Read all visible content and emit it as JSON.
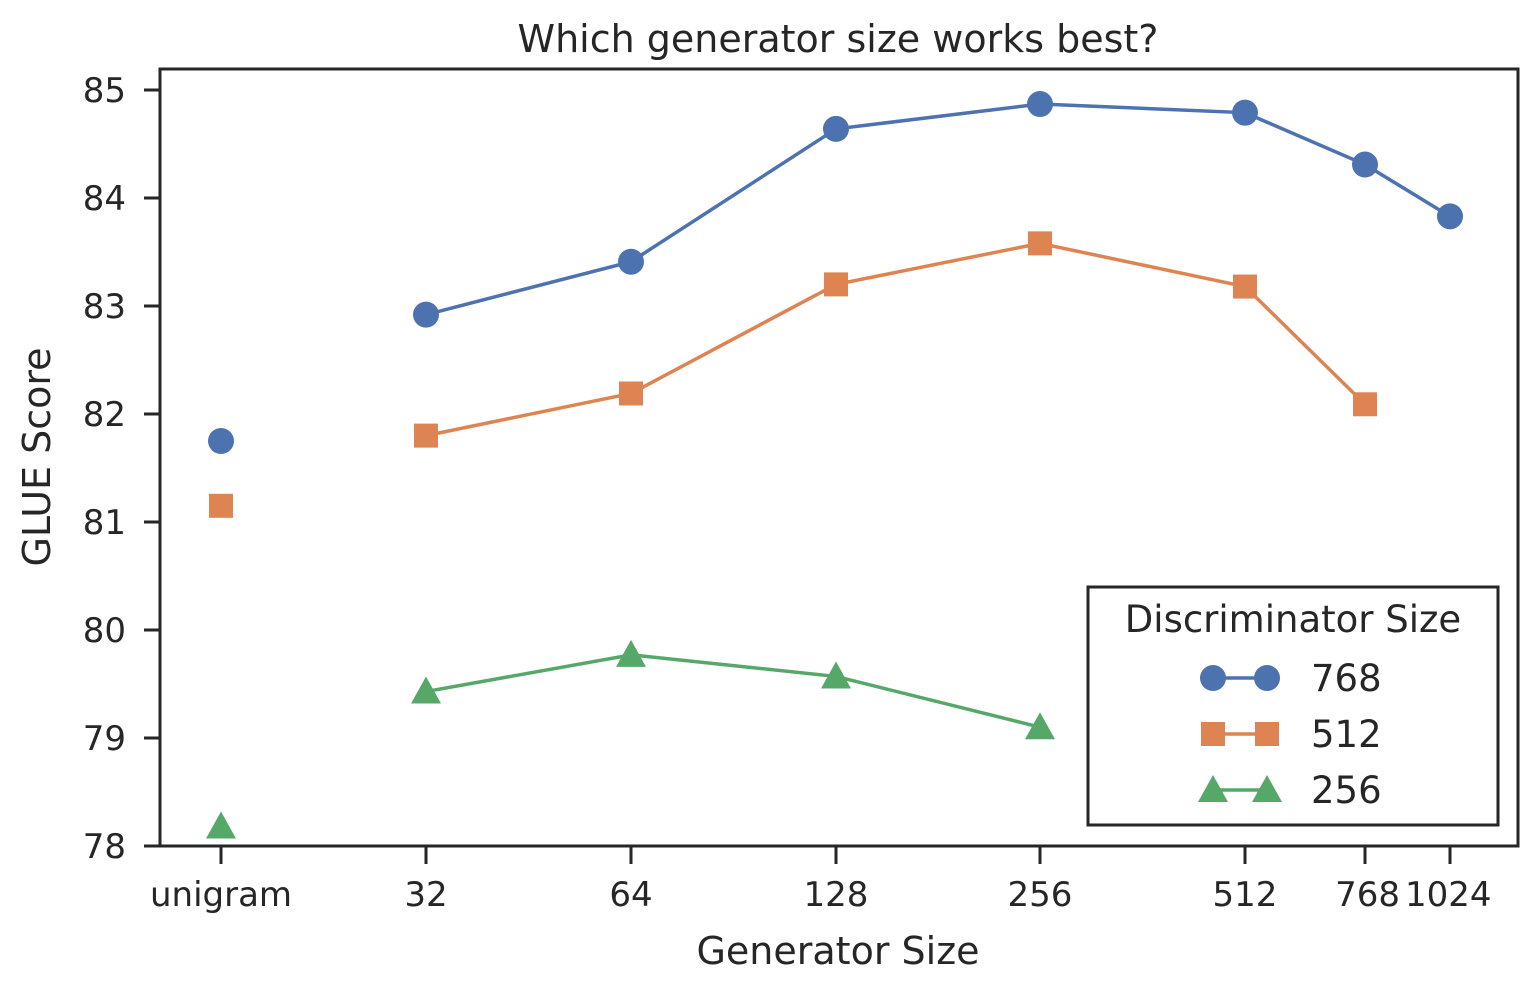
{
  "chart_data": {
    "type": "line",
    "title": "Which generator size works best?",
    "xlabel": "Generator Size",
    "ylabel": "GLUE Score",
    "categories": [
      "unigram",
      "32",
      "64",
      "128",
      "256",
      "512",
      "768",
      "1024"
    ],
    "x_scale": "log2 (unigram shown separately)",
    "ylim": [
      78,
      85.2
    ],
    "yticks": [
      78,
      79,
      80,
      81,
      82,
      83,
      84,
      85
    ],
    "grid": false,
    "legend": {
      "title": "Discriminator Size",
      "placement": "lower-right"
    },
    "series": [
      {
        "name": "768",
        "color": "#4c72b0",
        "marker": "circle",
        "values": [
          81.75,
          82.92,
          83.41,
          84.64,
          84.87,
          84.79,
          84.31,
          83.83
        ]
      },
      {
        "name": "512",
        "color": "#dd8452",
        "marker": "square",
        "values": [
          81.15,
          81.8,
          82.19,
          83.2,
          83.58,
          83.18,
          82.09,
          null
        ]
      },
      {
        "name": "256",
        "color": "#55a868",
        "marker": "triangle",
        "values": [
          78.18,
          79.43,
          79.77,
          79.57,
          79.1,
          null,
          null,
          null
        ]
      }
    ]
  }
}
